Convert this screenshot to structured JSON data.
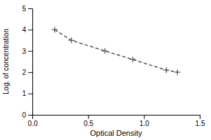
{
  "chart_data": {
    "type": "line",
    "x": [
      0.2,
      0.35,
      0.65,
      0.9,
      1.2,
      1.3
    ],
    "values": [
      4.0,
      3.5,
      3.0,
      2.6,
      2.1,
      2.0
    ],
    "xlabel": "Optical Density",
    "ylabel": "Log. of concentration",
    "xlim": [
      0,
      1.5
    ],
    "ylim": [
      0,
      5
    ],
    "xticks": [
      {
        "value": 0,
        "label": "0.0"
      },
      0.5,
      {
        "value": 1.0,
        "label": "1.0"
      },
      1.5
    ],
    "yticks": [
      0,
      1,
      2,
      3,
      4,
      5
    ],
    "color": "#555555",
    "marker": "plus",
    "line_style": "dashed",
    "grid": false
  }
}
